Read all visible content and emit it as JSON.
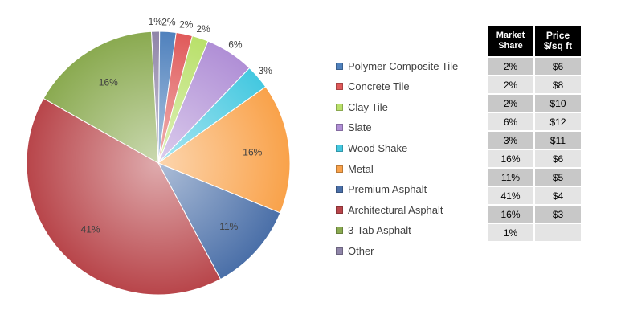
{
  "chart_data": {
    "type": "pie",
    "title": "",
    "categories": [
      "Polymer Composite Tile",
      "Concrete Tile",
      "Clay Tile",
      "Slate",
      "Wood Shake",
      "Metal",
      "Premium Asphalt",
      "Architectural Asphalt",
      "3-Tab Asphalt",
      "Other"
    ],
    "values": [
      2,
      2,
      2,
      6,
      3,
      16,
      11,
      41,
      16,
      1
    ],
    "data_labels": [
      "2%",
      "2%",
      "2%",
      "6%",
      "3%",
      "16%",
      "11%",
      "41%",
      "16%",
      "1%"
    ],
    "colors": [
      "#4f81bd",
      "#e05a5a",
      "#b9e06a",
      "#b08fd6",
      "#44c8e0",
      "#f9a24a",
      "#4a6fa8",
      "#b8454a",
      "#8aaa50",
      "#8f85a8"
    ],
    "legend_position": "right"
  },
  "table": {
    "headers": [
      "Market\nShare",
      "Price\n$/sq ft"
    ],
    "header_lines": [
      [
        "Market",
        "Share"
      ],
      [
        "Price",
        "$/sq ft"
      ]
    ],
    "rows": [
      {
        "share": "2%",
        "price": "$6"
      },
      {
        "share": "2%",
        "price": "$8"
      },
      {
        "share": "2%",
        "price": "$10"
      },
      {
        "share": "6%",
        "price": "$12"
      },
      {
        "share": "3%",
        "price": "$11"
      },
      {
        "share": "16%",
        "price": "$6"
      },
      {
        "share": "11%",
        "price": "$5"
      },
      {
        "share": "41%",
        "price": "$4"
      },
      {
        "share": "16%",
        "price": "$3"
      },
      {
        "share": "1%",
        "price": ""
      }
    ]
  }
}
